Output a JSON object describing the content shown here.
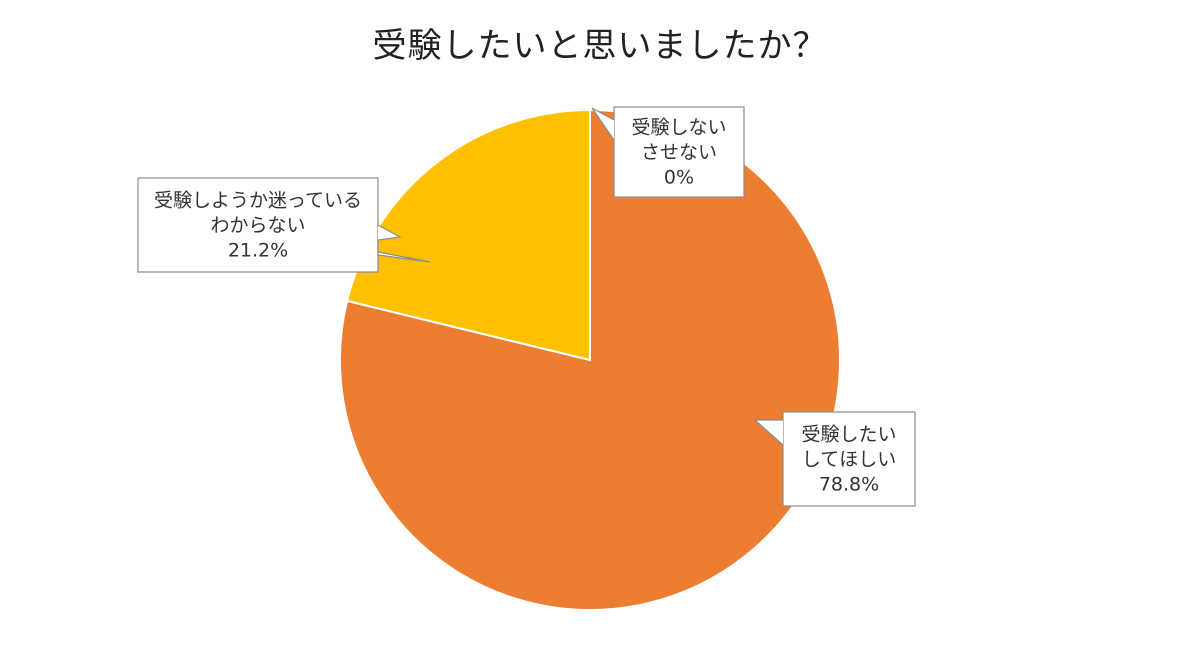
{
  "chart_data": {
    "type": "pie",
    "title": "受験したいと思いましたか？",
    "slices": [
      {
        "label_lines": [
          "受験しない",
          "させない"
        ],
        "value_label": "0%",
        "value": 0,
        "color": "#4472C4"
      },
      {
        "label_lines": [
          "受験したい",
          "してほしい"
        ],
        "value_label": "78.8%",
        "value": 78.8,
        "color": "#ED7D31"
      },
      {
        "label_lines": [
          "受験しようか迷っている",
          "わからない"
        ],
        "value_label": "21.2%",
        "value": 21.2,
        "color": "#FFC000"
      }
    ],
    "start_angle_deg": 0,
    "direction": "clockwise"
  }
}
